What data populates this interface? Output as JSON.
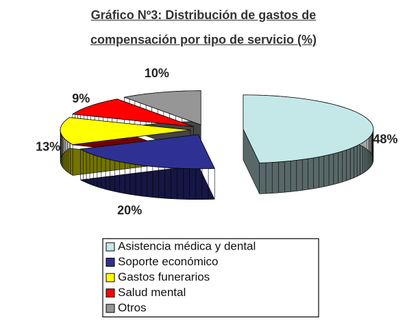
{
  "chart_data": {
    "type": "pie3d",
    "title": "Gráfico Nº3: Distribución de gastos de compensación por tipo de servicio (%)",
    "categories": [
      "Asistencia médica y dental",
      "Soporte económico",
      "Gastos funerarios",
      "Salud mental",
      "Otros"
    ],
    "values": [
      48,
      20,
      13,
      9,
      10
    ],
    "value_labels": [
      "48%",
      "20%",
      "13%",
      "9%",
      "10%"
    ],
    "colors": [
      "#c4e8e8",
      "#2e3192",
      "#ffff00",
      "#ff0000",
      "#969696"
    ],
    "legend": "bottom"
  }
}
